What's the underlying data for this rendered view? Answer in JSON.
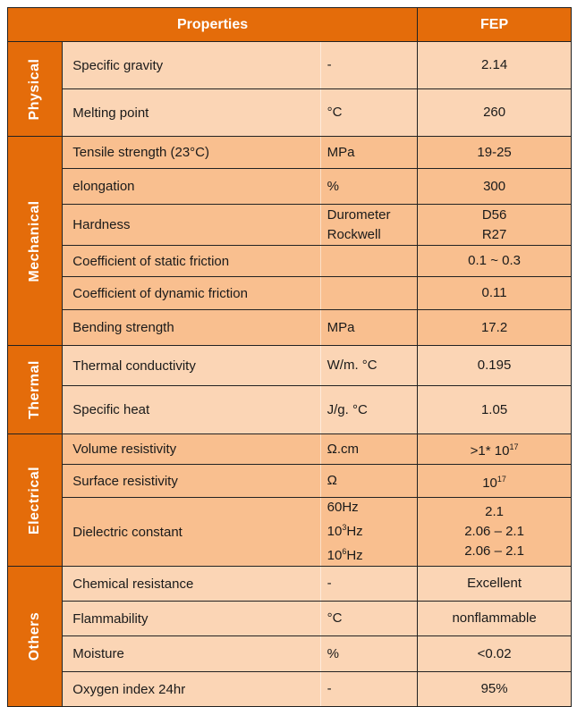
{
  "header": {
    "properties": "Properties",
    "material": "FEP"
  },
  "groups": [
    {
      "name": "Physical",
      "shade": "light",
      "rows": [
        {
          "property": "Specific gravity",
          "units": [
            "-"
          ],
          "values": [
            [
              "2.14"
            ]
          ],
          "h": 53
        },
        {
          "property": "Melting point",
          "units": [
            "°C"
          ],
          "values": [
            [
              "260"
            ]
          ],
          "h": 53
        }
      ]
    },
    {
      "name": "Mechanical",
      "shade": "dark",
      "rows": [
        {
          "property": "Tensile strength (23°C)",
          "units": [
            "MPa"
          ],
          "values": [
            [
              "19-25"
            ]
          ],
          "h": 36
        },
        {
          "property": "elongation",
          "units": [
            "%"
          ],
          "values": [
            [
              "300"
            ]
          ],
          "h": 40
        },
        {
          "property": "Hardness",
          "units": [
            "Durometer",
            "Rockwell"
          ],
          "values": [
            [
              "D56"
            ],
            [
              "R27"
            ]
          ],
          "h": 46
        },
        {
          "property": "Coefficient of static friction",
          "units": [
            ""
          ],
          "values": [
            [
              "0.1 ~ 0.3"
            ]
          ],
          "h": 35
        },
        {
          "property": "Coefficient of dynamic friction",
          "units": [
            ""
          ],
          "values": [
            [
              "0.11"
            ]
          ],
          "h": 37
        },
        {
          "property": "Bending strength",
          "units": [
            "MPa"
          ],
          "values": [
            [
              "17.2"
            ]
          ],
          "h": 40
        }
      ]
    },
    {
      "name": "Thermal",
      "shade": "light",
      "rows": [
        {
          "property": "Thermal conductivity",
          "units": [
            "W/m. °C"
          ],
          "values": [
            [
              "0.195"
            ]
          ],
          "h": 45
        },
        {
          "property": "Specific heat",
          "units": [
            "J/g. °C"
          ],
          "values": [
            [
              "1.05"
            ]
          ],
          "h": 54
        }
      ]
    },
    {
      "name": "Electrical",
      "shade": "dark",
      "rows": [
        {
          "property": "Volume resistivity",
          "units": [
            "Ω.cm"
          ],
          "values": [
            [
              ">1* 10",
              "17"
            ]
          ],
          "h": 34
        },
        {
          "property": "Surface resistivity",
          "units": [
            "Ω"
          ],
          "values": [
            [
              "10",
              "17"
            ]
          ],
          "h": 37
        },
        {
          "property": "Dielectric constant",
          "units": [
            "60Hz",
            "10|3|Hz",
            "10|6|Hz"
          ],
          "values": [
            [
              "2.1"
            ],
            [
              "2.06 – 2.1"
            ],
            [
              "2.06 – 2.1"
            ]
          ],
          "h": 70
        }
      ]
    },
    {
      "name": "Others",
      "shade": "light",
      "rows": [
        {
          "property": "Chemical resistance",
          "units": [
            "-"
          ],
          "values": [
            [
              "Excellent"
            ]
          ],
          "h": 39
        },
        {
          "property": "Flammability",
          "units": [
            "°C"
          ],
          "values": [
            [
              "nonflammable"
            ]
          ],
          "h": 39
        },
        {
          "property": "Moisture",
          "units": [
            "%"
          ],
          "values": [
            [
              "<0.02"
            ]
          ],
          "h": 40
        },
        {
          "property": "Oxygen index 24hr",
          "units": [
            "-"
          ],
          "values": [
            [
              "95%"
            ]
          ],
          "h": 39
        }
      ]
    }
  ]
}
